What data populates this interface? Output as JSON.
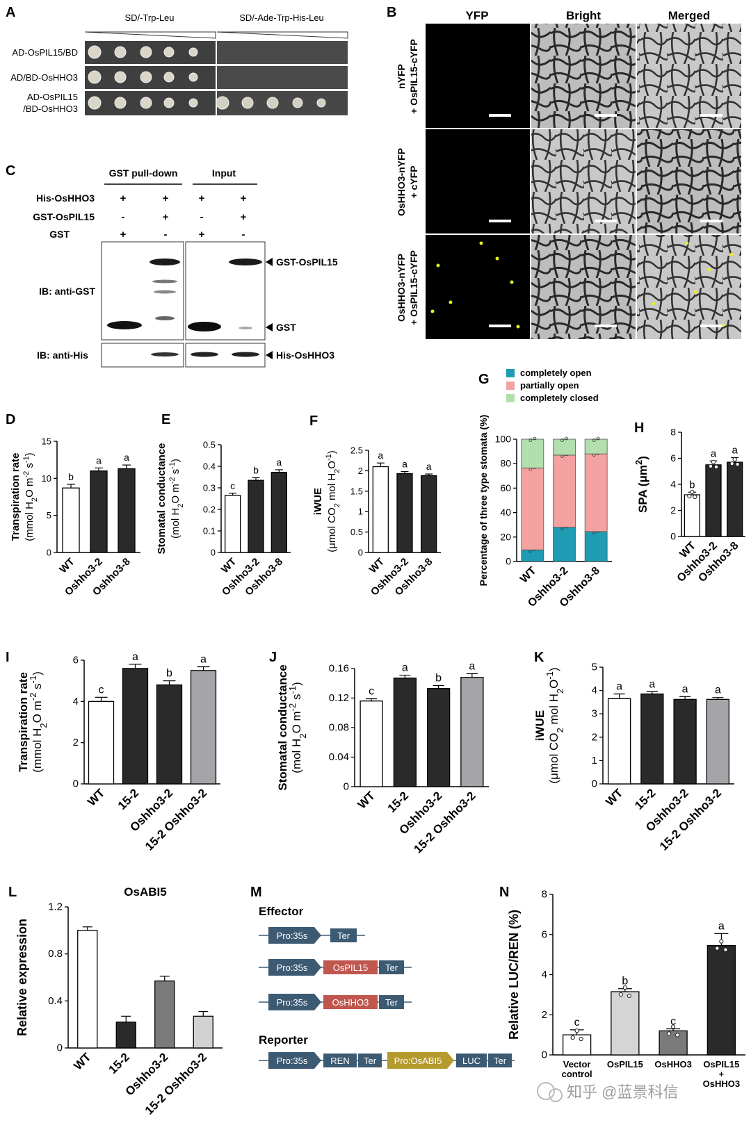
{
  "colors": {
    "black_bar": "#2a2a2a",
    "dark_grey_bar": "#7a7a7a",
    "light_grey_bar": "#d5d5d5",
    "mid_grey_bar": "#a8a8aa",
    "open_teal": "#1f9bb3",
    "partial_pink": "#f4a1a1",
    "closed_green": "#b3dfae",
    "construct_blue": "#3d5a73",
    "construct_red": "#c0574f",
    "construct_gold": "#b59a2e",
    "yfp_signal": "#e8ef1f"
  },
  "watermark": "知乎 @蓝景科信",
  "panelA": {
    "label": "A",
    "headers": [
      "SD/-Trp-Leu",
      "SD/-Ade-Trp-His-Leu"
    ],
    "rows": [
      "AD-OsPIL15/BD",
      "AD/BD-OsHHO3",
      "AD-OsPIL15",
      "/BD-OsHHO3"
    ],
    "growth_on_selective": [
      false,
      false,
      true
    ]
  },
  "panelB": {
    "label": "B",
    "columns": [
      "YFP",
      "Bright",
      "Merged"
    ],
    "rows": [
      [
        "nYFP",
        "+ OsPIL15-cYFP"
      ],
      [
        "OsHHO3-nYFP",
        "+ cYFP"
      ],
      [
        "OsHHO3-nYFP",
        "+ OsPIL15-cYFP"
      ]
    ]
  },
  "panelC": {
    "label": "C",
    "groups": [
      "GST pull-down",
      "Input"
    ],
    "row_labels": [
      "His-OsHHO3",
      "GST-OsPIL15",
      "GST"
    ],
    "signs": [
      [
        "+",
        "+",
        "+",
        "+"
      ],
      [
        "-",
        "+",
        "-",
        "+"
      ],
      [
        "+",
        "-",
        "+",
        "-"
      ]
    ],
    "blot_labels": [
      "IB: anti-GST",
      "IB: anti-His"
    ],
    "band_labels": [
      "GST-OsPIL15",
      "GST",
      "His-OsHHO3"
    ]
  },
  "chart_data": [
    {
      "panel": "D",
      "type": "bar",
      "categories": [
        "WT",
        "Oshho3-2",
        "Oshho3-8"
      ],
      "values": [
        8.7,
        11.0,
        11.3
      ],
      "errors": [
        0.5,
        0.4,
        0.5
      ],
      "letters": [
        "b",
        "a",
        "a"
      ],
      "ylabel": [
        "Transpiration rate",
        "(mmol H",
        "2",
        "O m",
        "-2",
        " s",
        "-1",
        ")"
      ],
      "ylim": [
        0,
        15
      ],
      "yticks": [
        0,
        5,
        10,
        15
      ]
    },
    {
      "panel": "E",
      "type": "bar",
      "categories": [
        "WT",
        "Oshho3-2",
        "Oshho3-8"
      ],
      "values": [
        0.265,
        0.335,
        0.372
      ],
      "errors": [
        0.01,
        0.012,
        0.012
      ],
      "letters": [
        "c",
        "b",
        "a"
      ],
      "ylabel": [
        "Stomatal conductance",
        "(mol H",
        "2",
        "O m",
        "-2",
        " s",
        "-1",
        ")"
      ],
      "ylim": [
        0,
        0.5
      ],
      "yticks": [
        0,
        0.1,
        0.2,
        0.3,
        0.4,
        0.5
      ]
    },
    {
      "panel": "F",
      "type": "bar",
      "categories": [
        "WT",
        "Oshho3-2",
        "Oshho3-8"
      ],
      "values": [
        2.1,
        1.93,
        1.88
      ],
      "errors": [
        0.09,
        0.05,
        0.04
      ],
      "letters": [
        "a",
        "a",
        "a"
      ],
      "ylabel": [
        "iWUE",
        "(μmol CO",
        "2",
        " mol H",
        "2",
        "O",
        "-1",
        ")"
      ],
      "ylim": [
        0,
        2.5
      ],
      "yticks": [
        0,
        0.5,
        1.0,
        1.5,
        2.0,
        2.5
      ]
    },
    {
      "panel": "G",
      "type": "bar",
      "stacked": true,
      "categories": [
        "WT",
        "Oshho3-2",
        "Oshho3-8"
      ],
      "series": [
        {
          "name": "completely open",
          "values": [
            9.5,
            28,
            24.5
          ]
        },
        {
          "name": "partially open",
          "values": [
            67,
            59,
            63.5
          ]
        },
        {
          "name": "completely closed",
          "values": [
            23.5,
            13,
            12
          ]
        }
      ],
      "ylabel": "Percentage of three type stomata (%)",
      "ylim": [
        0,
        100
      ],
      "yticks": [
        0,
        20,
        40,
        60,
        80,
        100
      ],
      "legend": "top"
    },
    {
      "panel": "H",
      "type": "bar",
      "categories": [
        "WT",
        "Oshho3-2",
        "Oshho3-8"
      ],
      "values": [
        3.2,
        5.5,
        5.7
      ],
      "errors": [
        0.2,
        0.3,
        0.35
      ],
      "letters": [
        "b",
        "a",
        "a"
      ],
      "ylabel": [
        "SPA (μm",
        "2",
        ")"
      ],
      "ylim": [
        0,
        8
      ],
      "yticks": [
        0,
        2,
        4,
        6,
        8
      ]
    },
    {
      "panel": "I",
      "type": "bar",
      "categories": [
        "WT",
        "15-2",
        "Oshho3-2",
        "15-2 Oshho3-2"
      ],
      "values": [
        4.0,
        5.6,
        4.8,
        5.5
      ],
      "errors": [
        0.2,
        0.2,
        0.2,
        0.18
      ],
      "letters": [
        "c",
        "a",
        "b",
        "a"
      ],
      "ylabel": [
        "Transpiration rate",
        "(mmol H",
        "2",
        "O m",
        "-2",
        " s",
        "-1",
        ")"
      ],
      "ylim": [
        0,
        6
      ],
      "yticks": [
        0,
        2,
        4,
        6
      ]
    },
    {
      "panel": "J",
      "type": "bar",
      "categories": [
        "WT",
        "15-2",
        "Oshho3-2",
        "15-2 Oshho3-2"
      ],
      "values": [
        0.116,
        0.147,
        0.133,
        0.148
      ],
      "errors": [
        0.003,
        0.004,
        0.004,
        0.005
      ],
      "letters": [
        "c",
        "a",
        "b",
        "a"
      ],
      "ylabel": [
        "Stomatal conductance",
        "(mol H",
        "2",
        "O m",
        "-2",
        " s",
        "-1",
        ")"
      ],
      "ylim": [
        0,
        0.16
      ],
      "yticks": [
        0,
        0.04,
        0.08,
        0.12,
        0.16
      ]
    },
    {
      "panel": "K",
      "type": "bar",
      "categories": [
        "WT",
        "15-2",
        "Oshho3-2",
        "15-2 Oshho3-2"
      ],
      "values": [
        3.65,
        3.85,
        3.62,
        3.62
      ],
      "errors": [
        0.2,
        0.1,
        0.12,
        0.08
      ],
      "letters": [
        "a",
        "a",
        "a",
        "a"
      ],
      "ylabel": [
        "iWUE",
        "(μmol CO",
        "2",
        " mol H",
        "2",
        "O",
        "-1",
        ")"
      ],
      "ylim": [
        0,
        5
      ],
      "yticks": [
        0,
        1,
        2,
        3,
        4,
        5
      ]
    },
    {
      "panel": "L",
      "type": "bar",
      "title": "OsABI5",
      "categories": [
        "WT",
        "15-2",
        "Oshho3-2",
        "15-2 Oshho3-2"
      ],
      "values": [
        1.0,
        0.22,
        0.57,
        0.27
      ],
      "errors": [
        0.03,
        0.05,
        0.04,
        0.04
      ],
      "ylabel": [
        "Relative expression"
      ],
      "ylim": [
        0,
        1.2
      ],
      "yticks": [
        0,
        0.4,
        0.8,
        1.2
      ]
    },
    {
      "panel": "N",
      "type": "bar",
      "categories": [
        "Vector control",
        "OsPIL15",
        "OsHHO3",
        "OsPIL15 + OsHHO3"
      ],
      "values": [
        1.0,
        3.15,
        1.2,
        5.45
      ],
      "errors": [
        0.25,
        0.15,
        0.1,
        0.6
      ],
      "letters": [
        "c",
        "b",
        "c",
        "a"
      ],
      "ylabel": [
        "Relative LUC/REN (%)"
      ],
      "ylim": [
        0,
        8
      ],
      "yticks": [
        0,
        2,
        4,
        6,
        8
      ]
    }
  ],
  "panelM": {
    "label": "M",
    "effector_title": "Effector",
    "reporter_title": "Reporter",
    "promoter": "Pro:35s",
    "terminator": "Ter",
    "genes": [
      "OsPIL15",
      "OsHHO3"
    ],
    "reporter_parts": [
      "REN",
      "Ter",
      "Pro:OsABI5",
      "LUC",
      "Ter"
    ]
  }
}
